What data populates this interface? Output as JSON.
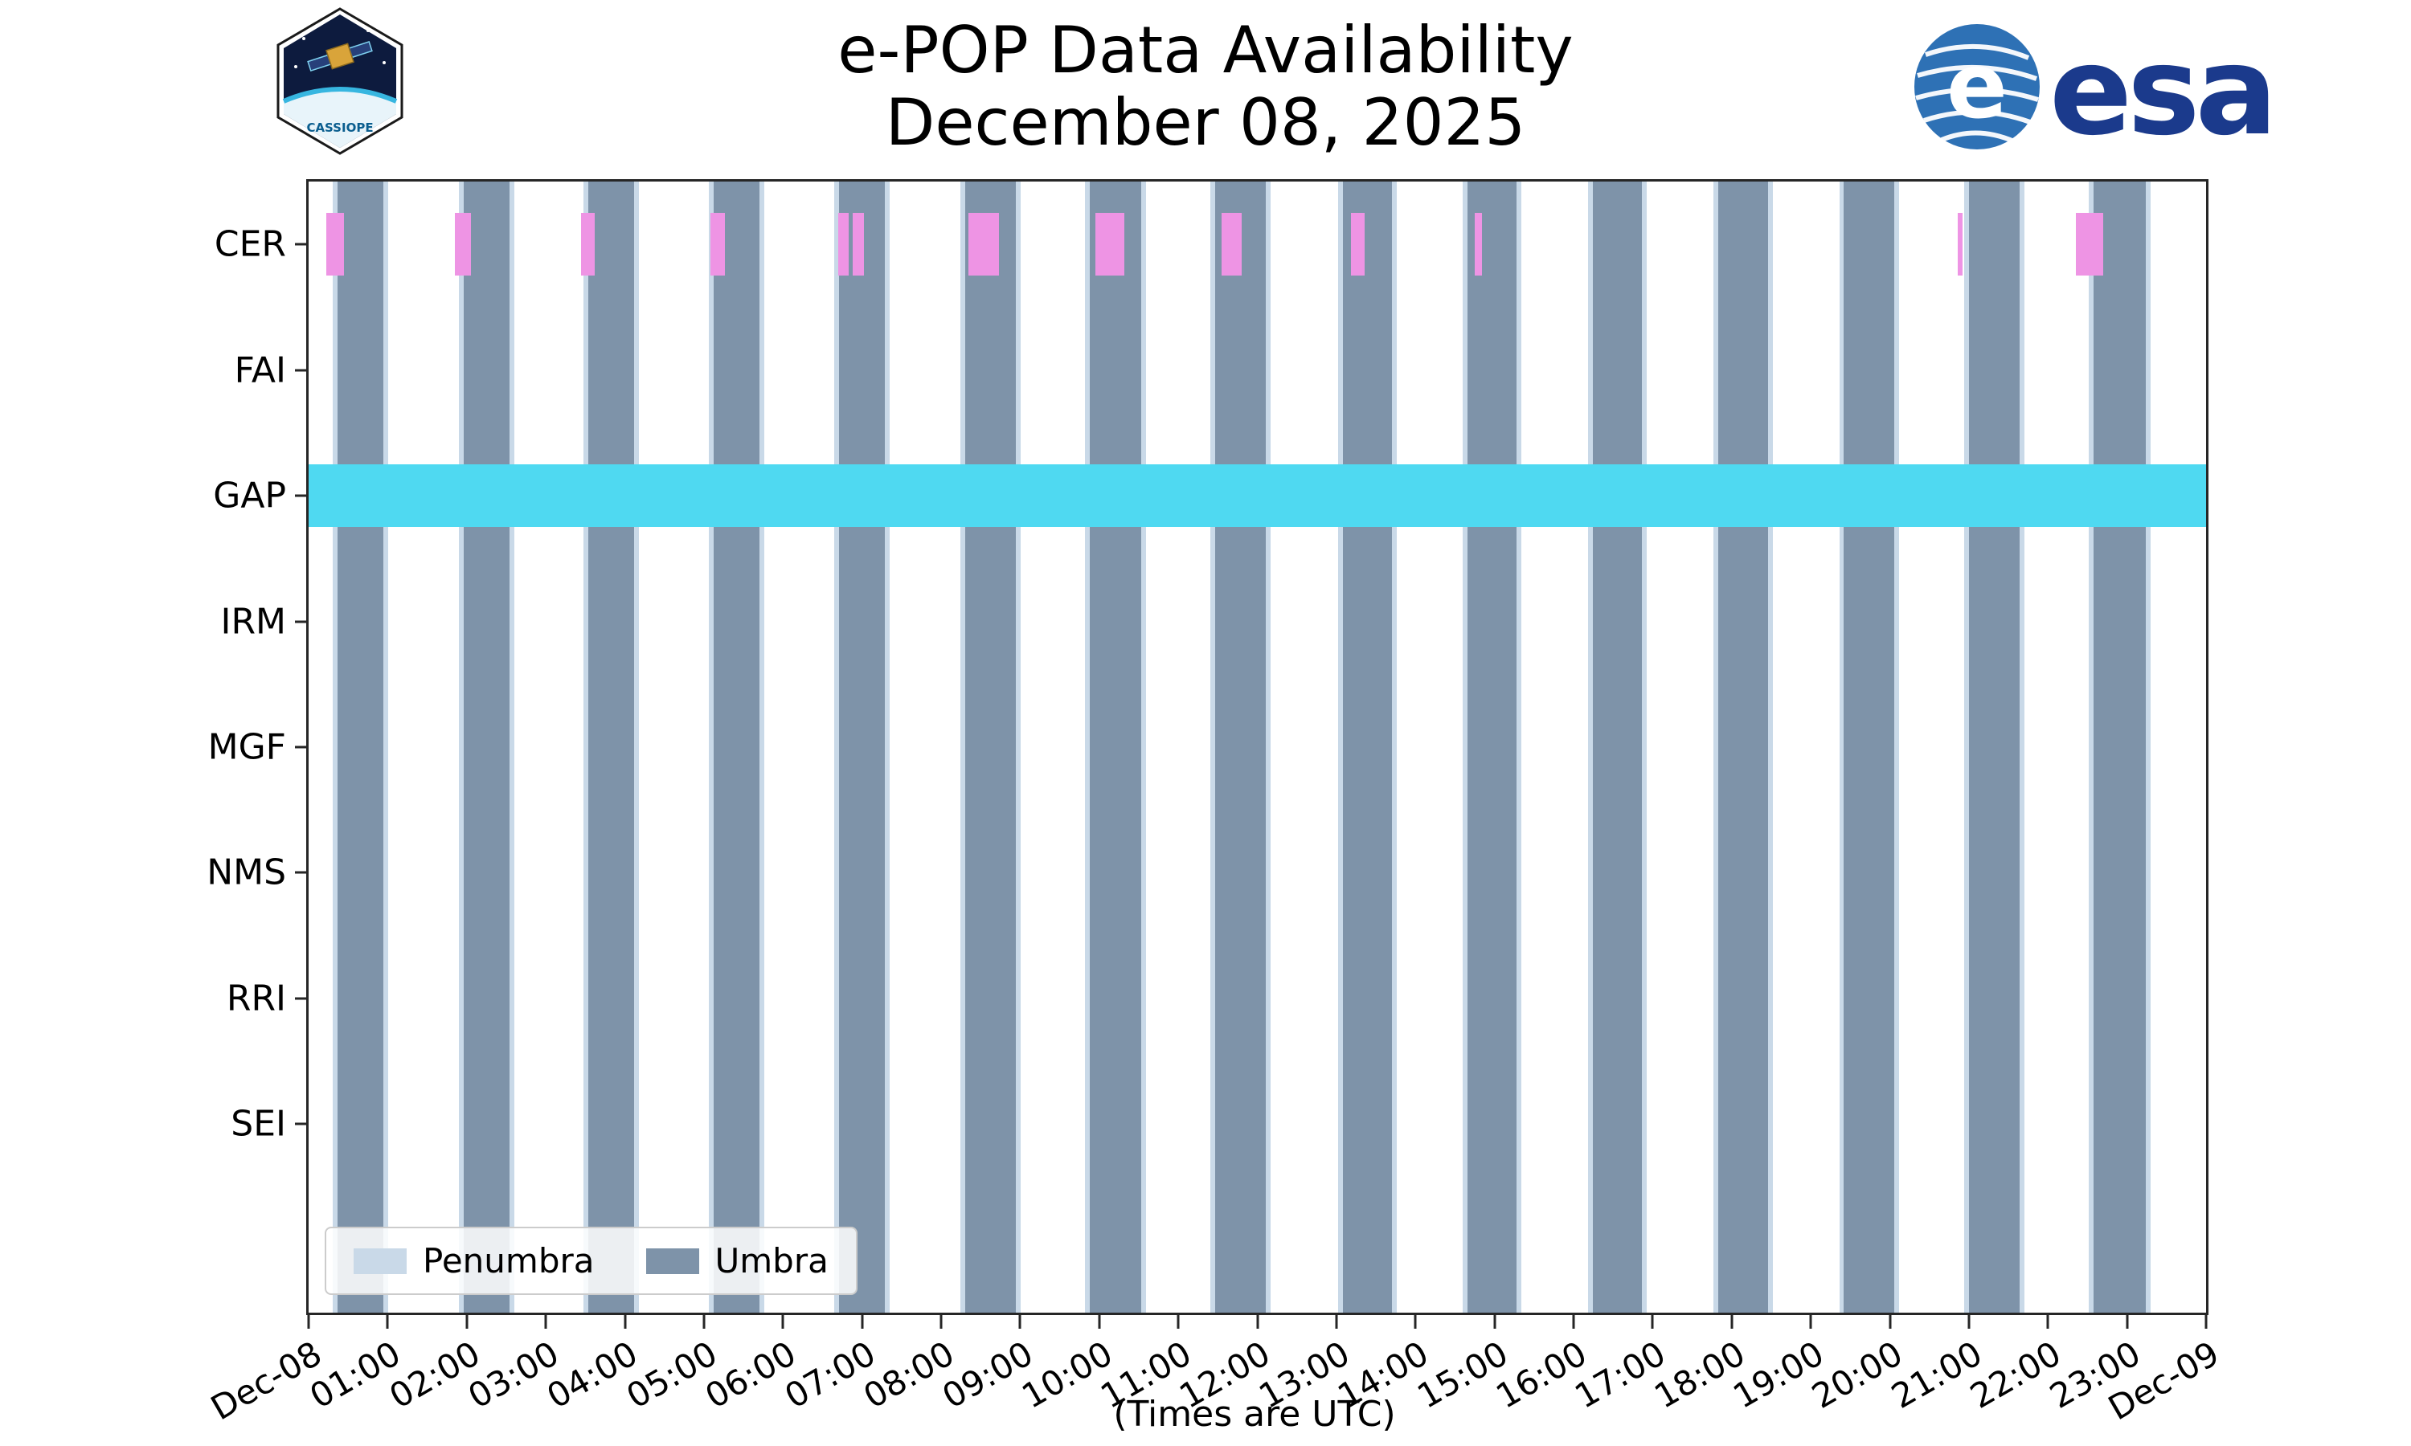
{
  "chart_data": {
    "type": "timeline",
    "title": "e-POP Data Availability",
    "subtitle": "December 08, 2025",
    "x_label": "(Times are UTC)",
    "x_range_hours": [
      0,
      24
    ],
    "x_tick_labels": [
      "Dec-08",
      "01:00",
      "02:00",
      "03:00",
      "04:00",
      "05:00",
      "06:00",
      "07:00",
      "08:00",
      "09:00",
      "10:00",
      "11:00",
      "12:00",
      "13:00",
      "14:00",
      "15:00",
      "16:00",
      "17:00",
      "18:00",
      "19:00",
      "20:00",
      "21:00",
      "22:00",
      "23:00",
      "Dec-09"
    ],
    "instruments": [
      "CER",
      "FAI",
      "GAP",
      "IRM",
      "MGF",
      "NMS",
      "RRI",
      "SEI"
    ],
    "rows_total_units": 9,
    "bar_height_units": 0.5,
    "shading": {
      "umbra": {
        "label": "Umbra",
        "color": "#7e93a9",
        "intervals": [
          [
            0.37,
            0.95
          ],
          [
            1.96,
            2.54
          ],
          [
            3.54,
            4.12
          ],
          [
            5.12,
            5.7
          ],
          [
            6.71,
            7.29
          ],
          [
            8.3,
            8.95
          ],
          [
            9.88,
            10.53
          ],
          [
            11.47,
            12.11
          ],
          [
            13.08,
            13.7
          ],
          [
            14.66,
            15.28
          ],
          [
            16.24,
            16.86
          ],
          [
            17.83,
            18.46
          ],
          [
            19.42,
            20.06
          ],
          [
            21.0,
            21.64
          ],
          [
            22.58,
            23.24
          ]
        ]
      },
      "penumbra": {
        "label": "Penumbra",
        "color": "#c9d9e8",
        "pad_hours": 0.06
      }
    },
    "availability": [
      {
        "instrument": "CER",
        "color": "#ee94e4",
        "intervals": [
          [
            0.22,
            0.45
          ],
          [
            1.85,
            2.05
          ],
          [
            3.45,
            3.62
          ],
          [
            5.08,
            5.27
          ],
          [
            6.7,
            6.83
          ],
          [
            6.88,
            7.02
          ],
          [
            8.35,
            8.73
          ],
          [
            9.95,
            10.32
          ],
          [
            11.55,
            11.8
          ],
          [
            13.18,
            13.36
          ],
          [
            14.75,
            14.84
          ],
          [
            20.86,
            20.92
          ],
          [
            22.35,
            22.7
          ]
        ]
      },
      {
        "instrument": "GAP",
        "color": "#4fd9f1",
        "intervals": [
          [
            0,
            24
          ]
        ]
      }
    ],
    "legend": [
      {
        "label": "Penumbra",
        "color": "#c9d9e8"
      },
      {
        "label": "Umbra",
        "color": "#7e93a9"
      }
    ]
  },
  "logos": {
    "cassiope_label": "CASSIOPE",
    "esa_label": "esa"
  }
}
